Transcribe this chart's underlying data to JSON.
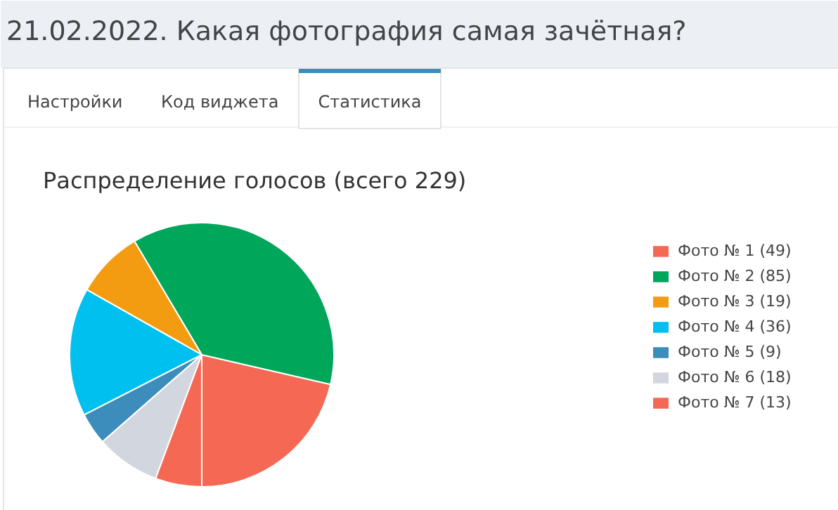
{
  "chart_data": {
    "type": "pie",
    "title": "Распределение голосов (всего 229)",
    "annotations": [
      "21.02.2022. Какая фотография самая зачётная?",
      "Настройки",
      "Код виджета",
      "Статистика"
    ],
    "categories": [
      "Фото № 1 (49)",
      "Фото № 2 (85)",
      "Фото № 3 (19)",
      "Фото № 4 (36)",
      "Фото № 5 (9)",
      "Фото № 6 (18)",
      "Фото № 7 (13)"
    ],
    "values": [
      49,
      85,
      19,
      36,
      9,
      18,
      13
    ],
    "colors": [
      "#f56954",
      "#00a65a",
      "#f39c12",
      "#00c0ef",
      "#3c8dbc",
      "#d2d6de",
      "#f56954"
    ],
    "legend": "right"
  }
}
